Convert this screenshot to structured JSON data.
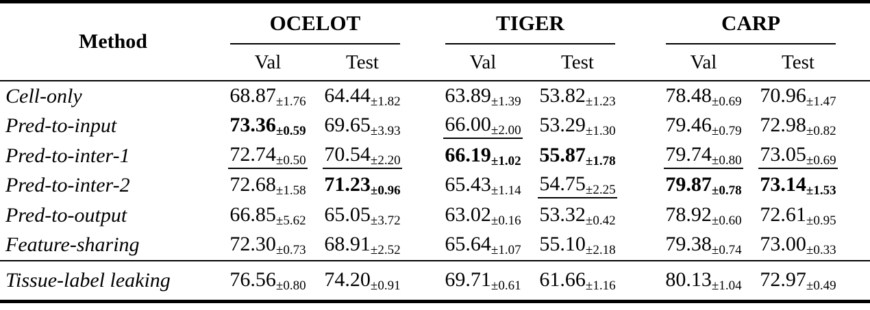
{
  "colors": {
    "text": "#000000",
    "background": "#ffffff",
    "rule": "#000000"
  },
  "table": {
    "method_header": "Method",
    "groups": [
      "OCELOT",
      "TIGER",
      "CARP"
    ],
    "subheaders": [
      "Val",
      "Test"
    ],
    "rows": [
      {
        "method": "Cell-only",
        "cells": [
          {
            "value": "68.87",
            "std": "±1.76",
            "style": "plain"
          },
          {
            "value": "64.44",
            "std": "±1.82",
            "style": "plain"
          },
          {
            "value": "63.89",
            "std": "±1.39",
            "style": "plain"
          },
          {
            "value": "53.82",
            "std": "±1.23",
            "style": "plain"
          },
          {
            "value": "78.48",
            "std": "±0.69",
            "style": "plain"
          },
          {
            "value": "70.96",
            "std": "±1.47",
            "style": "plain"
          }
        ]
      },
      {
        "method": "Pred-to-input",
        "cells": [
          {
            "value": "73.36",
            "std": "±0.59",
            "style": "bold"
          },
          {
            "value": "69.65",
            "std": "±3.93",
            "style": "plain"
          },
          {
            "value": "66.00",
            "std": "±2.00",
            "style": "underline"
          },
          {
            "value": "53.29",
            "std": "±1.30",
            "style": "plain"
          },
          {
            "value": "79.46",
            "std": "±0.79",
            "style": "plain"
          },
          {
            "value": "72.98",
            "std": "±0.82",
            "style": "plain"
          }
        ]
      },
      {
        "method": "Pred-to-inter-1",
        "cells": [
          {
            "value": "72.74",
            "std": "±0.50",
            "style": "underline"
          },
          {
            "value": "70.54",
            "std": "±2.20",
            "style": "underline"
          },
          {
            "value": "66.19",
            "std": "±1.02",
            "style": "bold"
          },
          {
            "value": "55.87",
            "std": "±1.78",
            "style": "bold"
          },
          {
            "value": "79.74",
            "std": "±0.80",
            "style": "underline"
          },
          {
            "value": "73.05",
            "std": "±0.69",
            "style": "underline"
          }
        ]
      },
      {
        "method": "Pred-to-inter-2",
        "cells": [
          {
            "value": "72.68",
            "std": "±1.58",
            "style": "plain"
          },
          {
            "value": "71.23",
            "std": "±0.96",
            "style": "bold"
          },
          {
            "value": "65.43",
            "std": "±1.14",
            "style": "plain"
          },
          {
            "value": "54.75",
            "std": "±2.25",
            "style": "underline"
          },
          {
            "value": "79.87",
            "std": "±0.78",
            "style": "bold"
          },
          {
            "value": "73.14",
            "std": "±1.53",
            "style": "bold"
          }
        ]
      },
      {
        "method": "Pred-to-output",
        "cells": [
          {
            "value": "66.85",
            "std": "±5.62",
            "style": "plain"
          },
          {
            "value": "65.05",
            "std": "±3.72",
            "style": "plain"
          },
          {
            "value": "63.02",
            "std": "±0.16",
            "style": "plain"
          },
          {
            "value": "53.32",
            "std": "±0.42",
            "style": "plain"
          },
          {
            "value": "78.92",
            "std": "±0.60",
            "style": "plain"
          },
          {
            "value": "72.61",
            "std": "±0.95",
            "style": "plain"
          }
        ]
      },
      {
        "method": "Feature-sharing",
        "cells": [
          {
            "value": "72.30",
            "std": "±0.73",
            "style": "plain"
          },
          {
            "value": "68.91",
            "std": "±2.52",
            "style": "plain"
          },
          {
            "value": "65.64",
            "std": "±1.07",
            "style": "plain"
          },
          {
            "value": "55.10",
            "std": "±2.18",
            "style": "plain"
          },
          {
            "value": "79.38",
            "std": "±0.74",
            "style": "plain"
          },
          {
            "value": "73.00",
            "std": "±0.33",
            "style": "plain"
          }
        ]
      }
    ],
    "footer_rows": [
      {
        "method": "Tissue-label leaking",
        "cells": [
          {
            "value": "76.56",
            "std": "±0.80",
            "style": "plain"
          },
          {
            "value": "74.20",
            "std": "±0.91",
            "style": "plain"
          },
          {
            "value": "69.71",
            "std": "±0.61",
            "style": "plain"
          },
          {
            "value": "61.66",
            "std": "±1.16",
            "style": "plain"
          },
          {
            "value": "80.13",
            "std": "±1.04",
            "style": "plain"
          },
          {
            "value": "72.97",
            "std": "±0.49",
            "style": "plain"
          }
        ]
      }
    ]
  }
}
